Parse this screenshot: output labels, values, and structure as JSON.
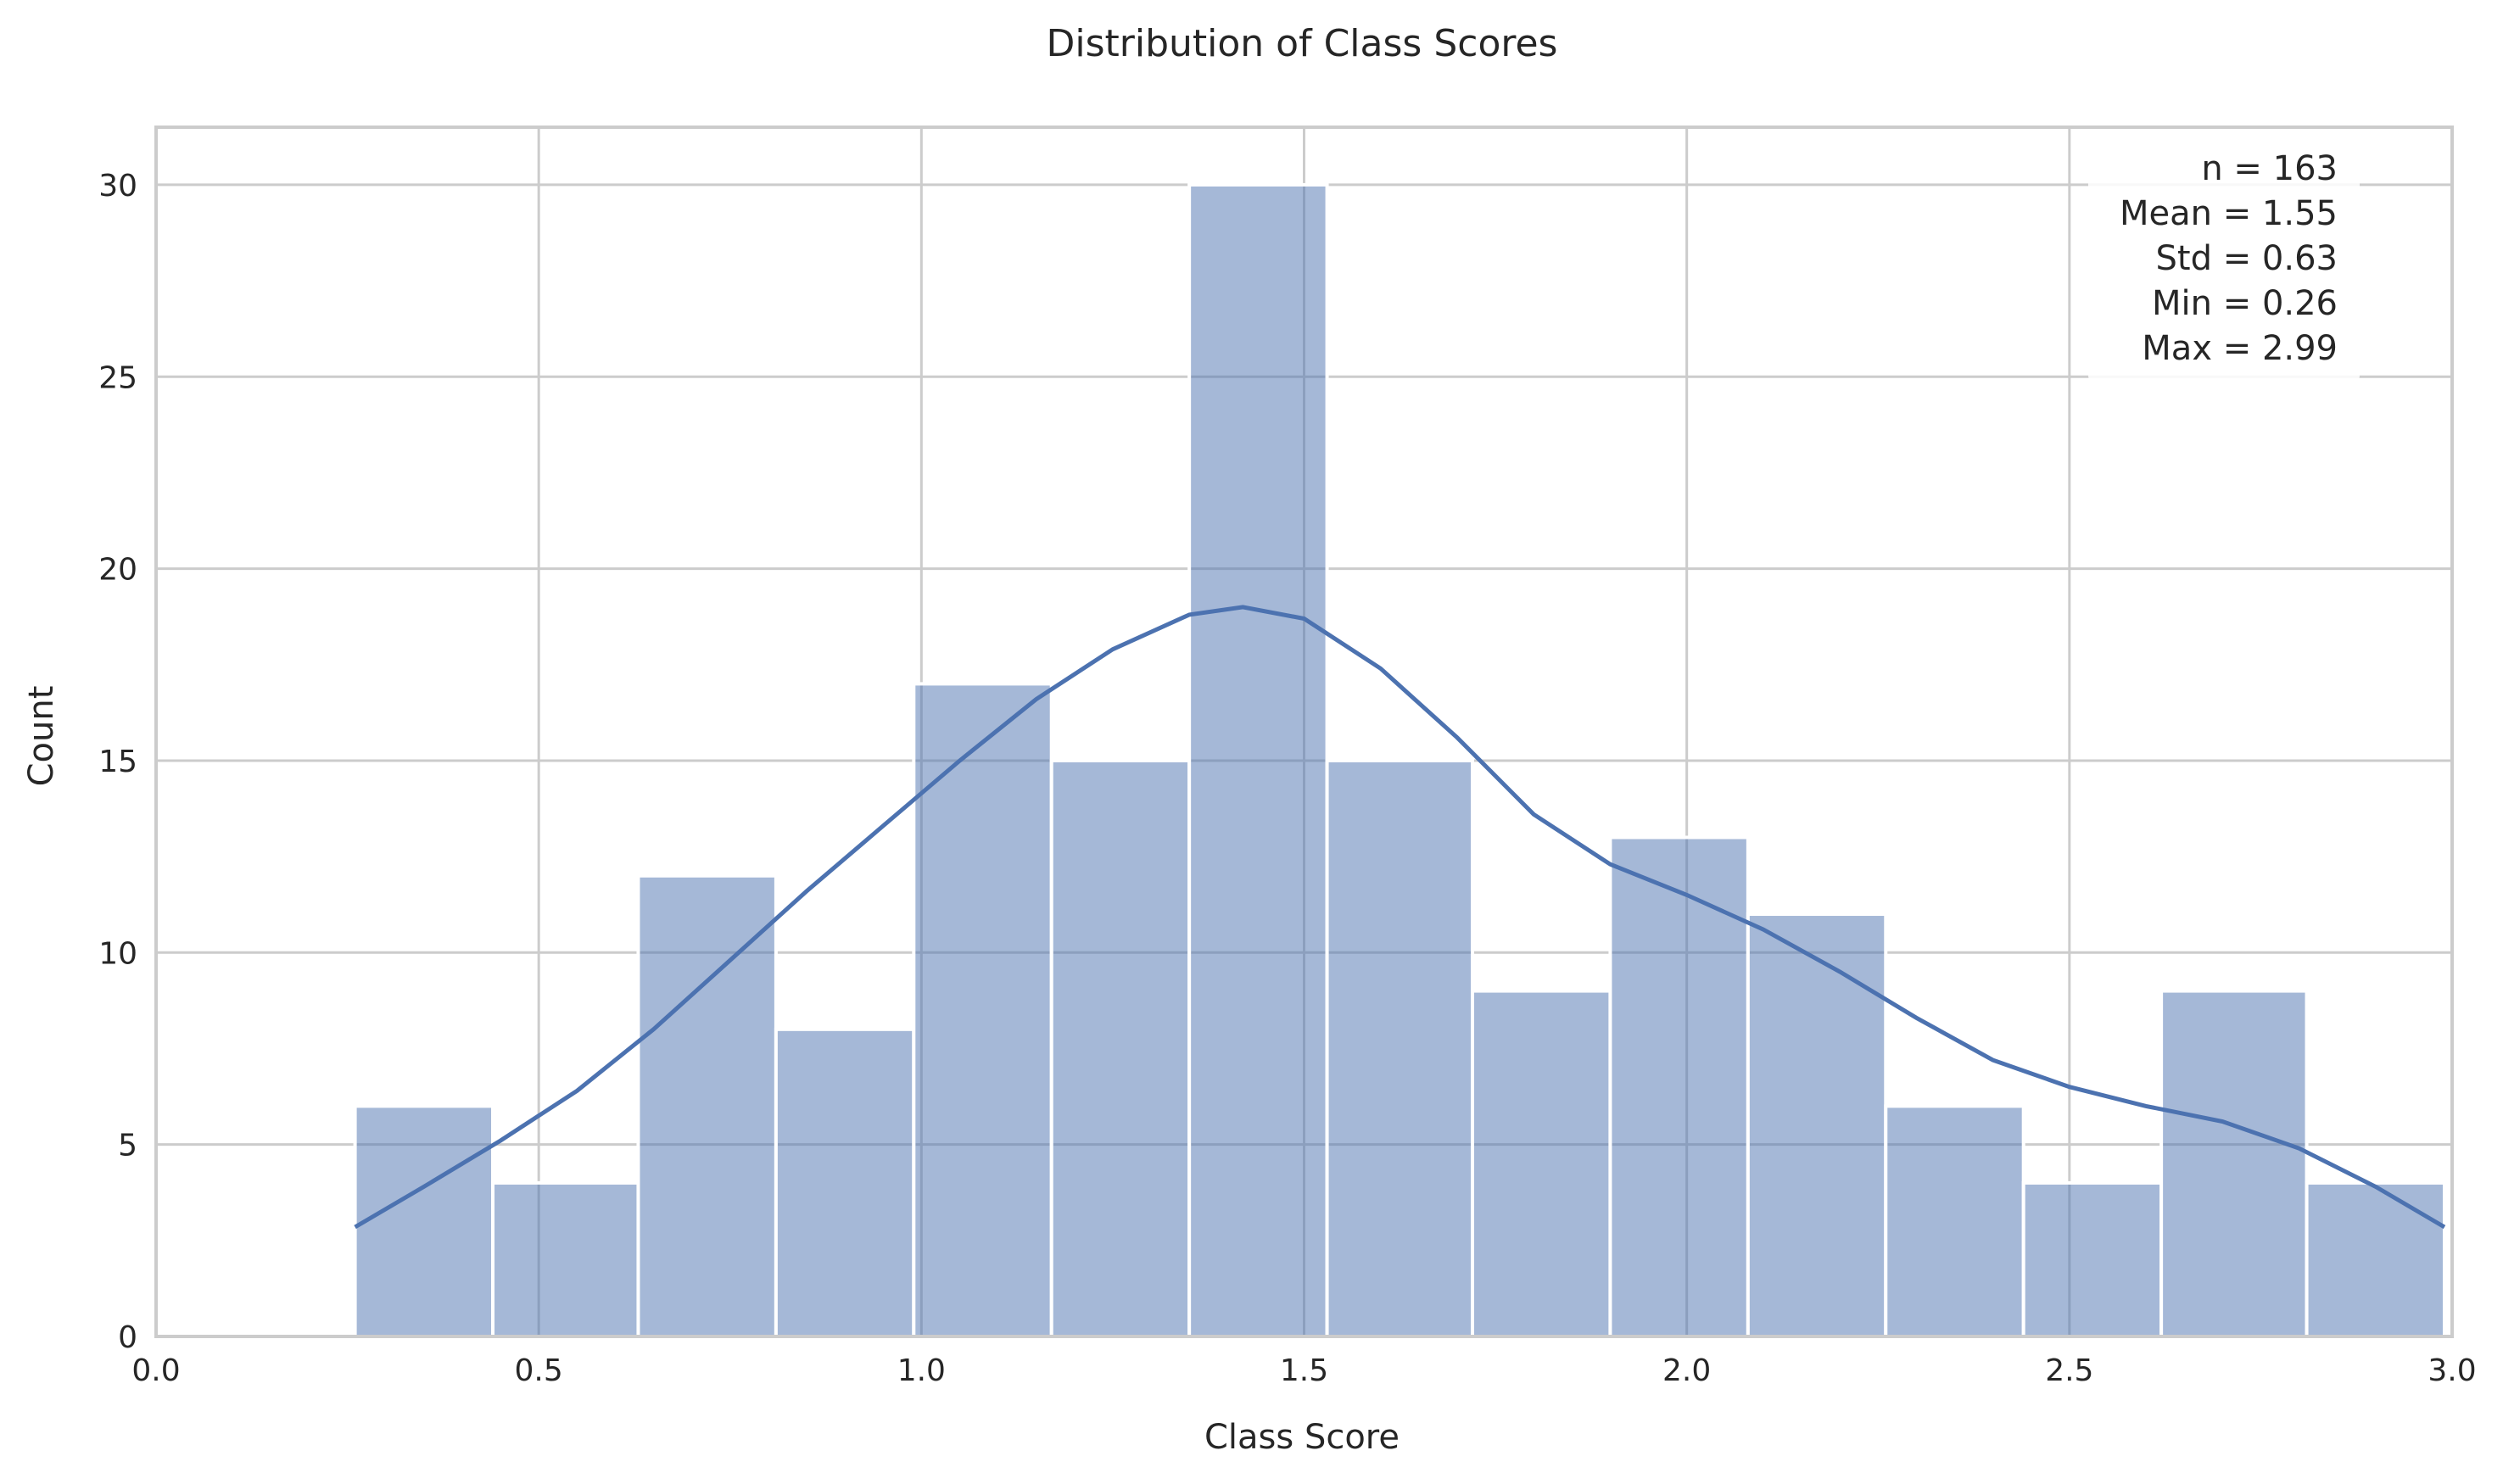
{
  "chart_data": {
    "type": "bar",
    "subtype": "histogram_with_kde",
    "title": "Distribution of Class Scores",
    "xlabel": "Class Score",
    "ylabel": "Count",
    "xlim": [
      0.0,
      3.0
    ],
    "ylim": [
      0,
      31.5
    ],
    "xticks": [
      0.0,
      0.5,
      1.0,
      1.5,
      2.0,
      2.5,
      3.0
    ],
    "xtick_labels": [
      "0.0",
      "0.5",
      "1.0",
      "1.5",
      "2.0",
      "2.5",
      "3.0"
    ],
    "yticks": [
      0,
      5,
      10,
      15,
      20,
      25,
      30
    ],
    "ytick_labels": [
      "0",
      "5",
      "10",
      "15",
      "20",
      "25",
      "30"
    ],
    "grid": true,
    "bins": [
      {
        "x0": 0.26,
        "x1": 0.44,
        "count": 6
      },
      {
        "x0": 0.44,
        "x1": 0.63,
        "count": 4
      },
      {
        "x0": 0.63,
        "x1": 0.81,
        "count": 12
      },
      {
        "x0": 0.81,
        "x1": 0.99,
        "count": 8
      },
      {
        "x0": 0.99,
        "x1": 1.17,
        "count": 17
      },
      {
        "x0": 1.17,
        "x1": 1.35,
        "count": 15
      },
      {
        "x0": 1.35,
        "x1": 1.53,
        "count": 30
      },
      {
        "x0": 1.53,
        "x1": 1.72,
        "count": 15
      },
      {
        "x0": 1.72,
        "x1": 1.9,
        "count": 9
      },
      {
        "x0": 1.9,
        "x1": 2.08,
        "count": 13
      },
      {
        "x0": 2.08,
        "x1": 2.26,
        "count": 11
      },
      {
        "x0": 2.26,
        "x1": 2.44,
        "count": 6
      },
      {
        "x0": 2.44,
        "x1": 2.62,
        "count": 4
      },
      {
        "x0": 2.62,
        "x1": 2.81,
        "count": 9
      },
      {
        "x0": 2.81,
        "x1": 2.99,
        "count": 4
      }
    ],
    "kde": {
      "x": [
        0.26,
        0.35,
        0.45,
        0.55,
        0.65,
        0.75,
        0.85,
        0.95,
        1.05,
        1.15,
        1.25,
        1.35,
        1.42,
        1.5,
        1.6,
        1.7,
        1.8,
        1.9,
        2.0,
        2.1,
        2.2,
        2.3,
        2.4,
        2.5,
        2.6,
        2.7,
        2.8,
        2.9,
        2.99
      ],
      "y": [
        2.85,
        3.9,
        5.1,
        6.4,
        8.0,
        9.8,
        11.6,
        13.3,
        15.0,
        16.6,
        17.9,
        18.8,
        19.0,
        18.7,
        17.4,
        15.6,
        13.6,
        12.3,
        11.5,
        10.6,
        9.5,
        8.3,
        7.2,
        6.5,
        6.0,
        5.6,
        4.9,
        3.9,
        2.85
      ]
    },
    "colors": {
      "bar": "#4c72b0",
      "kde": "#4c72b0",
      "grid": "#cccccc"
    },
    "annotation": {
      "placement": "top-right",
      "lines": [
        "n = 163",
        "Mean = 1.55",
        "Std = 0.63",
        "Min = 0.26",
        "Max = 2.99"
      ]
    }
  }
}
